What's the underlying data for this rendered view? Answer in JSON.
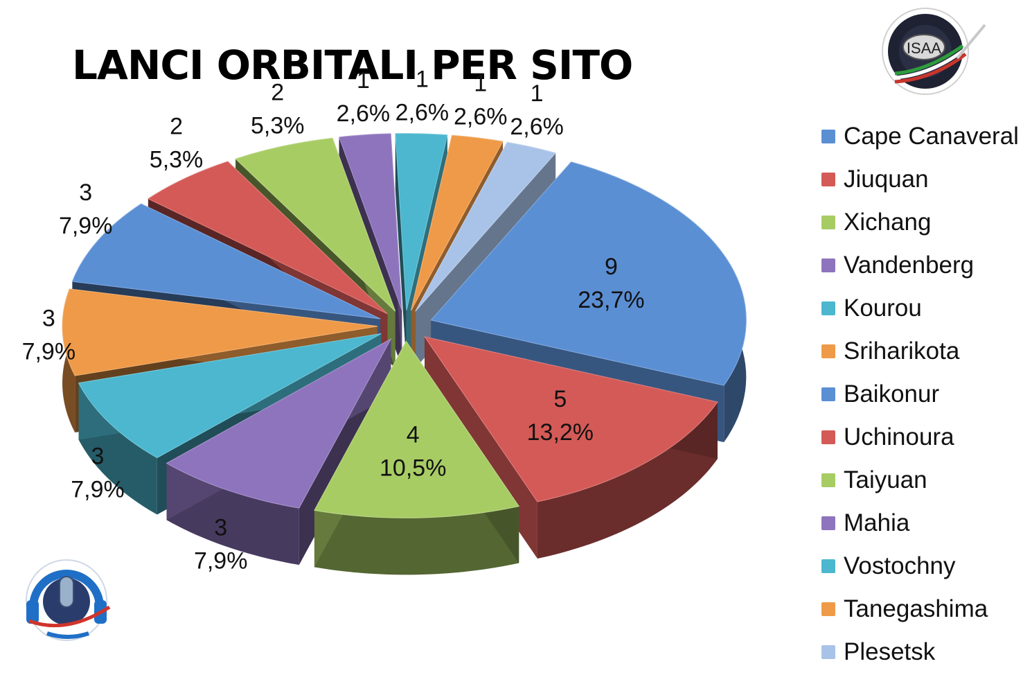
{
  "chart_data": {
    "type": "pie",
    "title": "LANCI ORBITALI PER SITO",
    "categories": [
      "Cape Canaveral",
      "Jiuquan",
      "Xichang",
      "Vandenberg",
      "Kourou",
      "Sriharikota",
      "Baikonur",
      "Uchinoura",
      "Taiyuan",
      "Mahia",
      "Vostochny",
      "Tanegashima",
      "Plesetsk"
    ],
    "values": [
      9,
      5,
      4,
      3,
      3,
      3,
      3,
      2,
      2,
      1,
      1,
      1,
      1
    ],
    "percent_labels": [
      "23,7%",
      "13,2%",
      "10,5%",
      "7,9%",
      "7,9%",
      "7,9%",
      "7,9%",
      "5,3%",
      "5,3%",
      "2,6%",
      "2,6%",
      "2,6%",
      "2,6%"
    ],
    "value_labels": [
      "9",
      "5",
      "4",
      "3",
      "3",
      "3",
      "3",
      "2",
      "2",
      "1",
      "1",
      "1",
      "1"
    ],
    "colors": [
      "#5b8fd4",
      "#d45a57",
      "#a8cc64",
      "#8e74bd",
      "#4cb7cf",
      "#ef9a48",
      "#5b8fd4",
      "#d45a57",
      "#a8cc64",
      "#8e74bd",
      "#4cb7cf",
      "#ef9a48",
      "#a9c3e8"
    ],
    "style": "3d-exploded",
    "legend_position": "right"
  },
  "logos": {
    "top_right": {
      "text": "ISAA"
    },
    "bottom_left": {
      "text": ""
    }
  }
}
